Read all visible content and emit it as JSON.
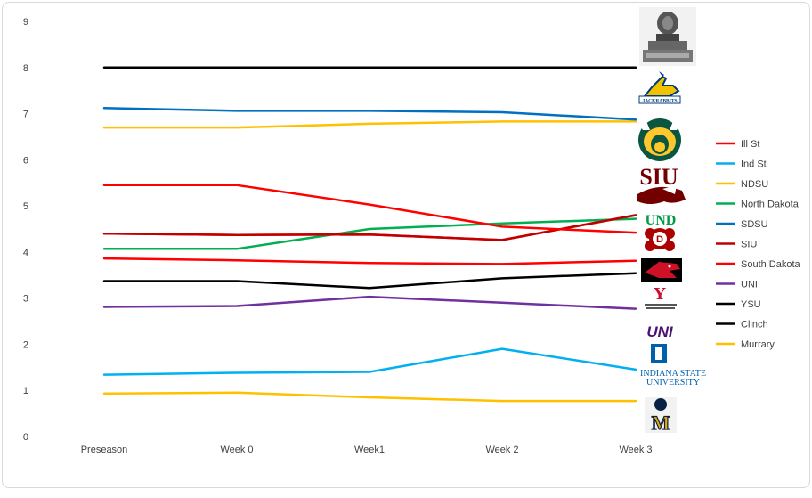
{
  "chart_data": {
    "type": "line",
    "categories": [
      "Preseason",
      "Week 0",
      "Week1",
      "Week 2",
      "Week 3"
    ],
    "ylim": [
      0,
      9
    ],
    "yticks": [
      "0",
      "1",
      "2",
      "3",
      "4",
      "5",
      "6",
      "7",
      "8",
      "9"
    ],
    "grid": false,
    "legend_placement": "right",
    "series": [
      {
        "name": "Ill St",
        "color": "#ff0000",
        "values": [
          4.4,
          4.37,
          4.38,
          4.26,
          4.8
        ]
      },
      {
        "name": "Ind St",
        "color": "#00b0f0",
        "values": [
          1.34,
          1.38,
          1.4,
          1.9,
          1.45
        ]
      },
      {
        "name": "NDSU",
        "color": "#ffc000",
        "values": [
          6.7,
          6.7,
          6.78,
          6.83,
          6.83
        ]
      },
      {
        "name": "North Dakota",
        "color": "#00b050",
        "values": [
          4.07,
          4.07,
          4.5,
          4.62,
          4.72
        ]
      },
      {
        "name": "SDSU",
        "color": "#0070c0",
        "values": [
          7.12,
          7.06,
          7.06,
          7.03,
          6.87
        ]
      },
      {
        "name": "SIU",
        "color": "#c00000",
        "values": [
          4.4,
          4.37,
          4.38,
          4.26,
          4.8
        ]
      },
      {
        "name": "South Dakota",
        "color": "#ff0000",
        "values": [
          5.45,
          5.45,
          5.03,
          4.55,
          4.42
        ]
      },
      {
        "name": "UNI",
        "color": "#7030a0",
        "values": [
          2.81,
          2.83,
          3.03,
          2.9,
          2.77
        ]
      },
      {
        "name": "YSU",
        "color": "#000000",
        "values": [
          3.37,
          3.37,
          3.22,
          3.43,
          3.54
        ]
      },
      {
        "name": "Clinch",
        "color": "#000000",
        "values": [
          8,
          8,
          8,
          8,
          8
        ]
      },
      {
        "name": "Murrary",
        "color": "#ffc000",
        "values": [
          0.93,
          0.95,
          0.85,
          0.77,
          0.77
        ]
      }
    ],
    "extra_lines": [
      {
        "color": "#ff0000",
        "values": [
          3.86,
          3.82,
          3.76,
          3.74,
          3.81
        ]
      }
    ]
  },
  "logos": [
    {
      "name": "trophy-logo",
      "text": ""
    },
    {
      "name": "sdsu-logo",
      "text": "JACKRABBITS"
    },
    {
      "name": "ndsu-logo",
      "text": ""
    },
    {
      "name": "siu-logo",
      "text": "SIU"
    },
    {
      "name": "und-logo",
      "text": "UND"
    },
    {
      "name": "usd-logo",
      "text": "D"
    },
    {
      "name": "illinois-state-logo",
      "text": ""
    },
    {
      "name": "ysu-logo",
      "text": "Y"
    },
    {
      "name": "uni-logo",
      "text": "UNI"
    },
    {
      "name": "indiana-state-logo",
      "text": "INDIANA STATE UNIVERSITY"
    },
    {
      "name": "murray-logo",
      "text": "M"
    }
  ]
}
